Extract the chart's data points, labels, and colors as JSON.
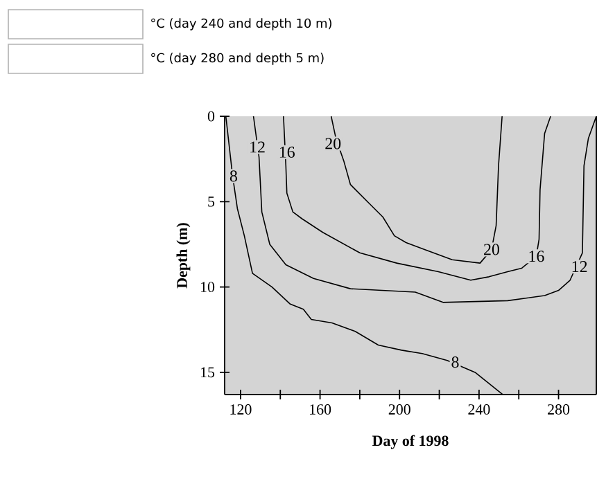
{
  "chart_data": {
    "type": "line",
    "xlabel": "Day of 1998",
    "ylabel": "Depth (m)",
    "xlim": [
      112,
      299
    ],
    "ylim": [
      16.3,
      0
    ],
    "xticks": [
      120,
      {
        "value": 140,
        "label": null
      },
      160,
      {
        "value": 180,
        "label": null
      },
      200,
      {
        "value": 220,
        "label": null
      },
      240,
      {
        "value": 260,
        "label": null
      },
      280
    ],
    "yticks": [
      0,
      5,
      10,
      15
    ],
    "grid": false,
    "marker": "none",
    "series": [
      {
        "color": "#000000",
        "x": [
          112.6,
          116,
          118.4,
          121.9,
          126,
          135.8,
          145,
          151.6,
          155.6,
          166,
          177.7,
          189.3,
          201,
          211.4,
          224,
          238,
          252
        ],
        "values": [
          0,
          3.5,
          5.4,
          7,
          9.2,
          10,
          11,
          11.3,
          11.9,
          12.1,
          12.6,
          13.4,
          13.7,
          13.9,
          14.3,
          15,
          16.3
        ]
      },
      {
        "color": "#000000",
        "x": [
          126.5,
          129.3,
          130.7,
          134.7,
          142.8,
          156.7,
          175.3,
          207.9,
          221.9,
          254.4,
          273,
          280,
          285.8,
          290.5,
          292,
          292.8,
          295,
          299
        ],
        "values": [
          0,
          2.4,
          5.6,
          7.5,
          8.7,
          9.5,
          10.1,
          10.3,
          10.9,
          10.8,
          10.5,
          10.2,
          9.6,
          null,
          8.0,
          2.9,
          1.3,
          0
        ]
      },
      {
        "color": "#000000",
        "x": [
          141.6,
          142.8,
          143.3,
          146.3,
          150.9,
          161.4,
          180,
          198.6,
          219.5,
          235.8,
          245,
          254.4,
          261.4,
          268.8,
          270.2,
          270.7,
          273,
          276
        ],
        "values": [
          0,
          2.9,
          4.5,
          5.6,
          6,
          6.8,
          8,
          8.6,
          9.1,
          9.6,
          9.4,
          9.1,
          8.9,
          8.2,
          7.2,
          4.3,
          1.0,
          0
        ]
      },
      {
        "color": "#000000",
        "x": [
          165.6,
          168,
          171.9,
          175.3,
          184.7,
          191.6,
          197.4,
          203.3,
          212.6,
          226.5,
          240.5,
          246.3,
          248.6,
          249.8,
          251.6
        ],
        "values": [
          0,
          1.3,
          2.6,
          4.0,
          5.1,
          5.9,
          7.0,
          7.4,
          7.8,
          8.4,
          8.6,
          7.8,
          6.4,
          2.9,
          0
        ]
      }
    ],
    "annotations": [
      "°C (day 240 and depth 10 m)",
      "°C (day 280 and depth 5 m)",
      {
        "text": "8",
        "x": 116.5,
        "y": 3.5
      },
      {
        "text": "12",
        "x": 128.4,
        "y": 1.8
      },
      {
        "text": "16",
        "x": 143.3,
        "y": 2.1
      },
      {
        "text": "20",
        "x": 166.5,
        "y": 1.6
      },
      {
        "text": "20",
        "x": 246.3,
        "y": 7.8
      },
      {
        "text": "16",
        "x": 268.8,
        "y": 8.2
      },
      {
        "text": "12",
        "x": 290.5,
        "y": 8.8
      },
      {
        "text": "8",
        "x": 228,
        "y": 14.4
      }
    ]
  }
}
